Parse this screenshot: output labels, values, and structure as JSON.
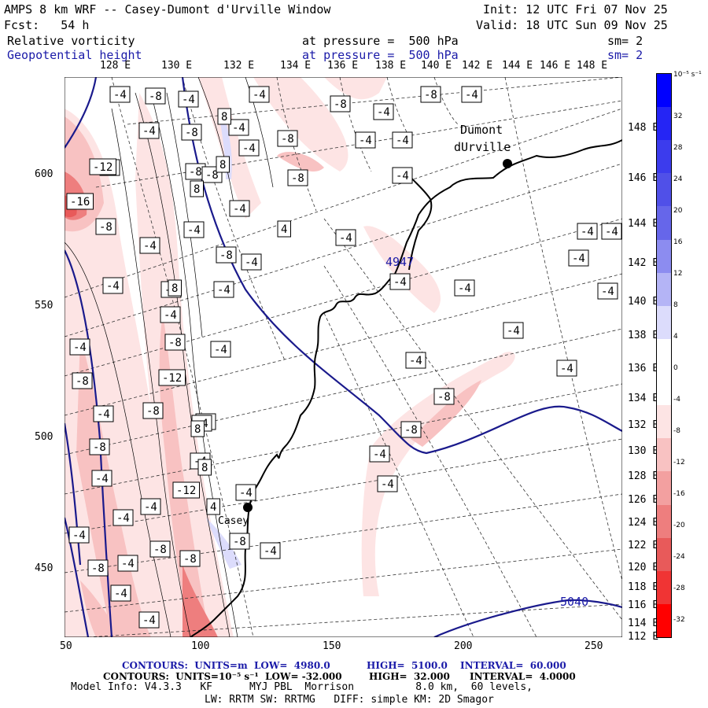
{
  "header": {
    "title": "AMPS 8 km WRF -- Casey-Dumont d'Urville Window",
    "init": "Init: 12 UTC Fri 07 Nov 25",
    "fcst": "Fcst:   54 h",
    "valid": "Valid: 18 UTC Sun 09 Nov 25",
    "field1": "Relative vorticity",
    "field1_level": "at pressure =  500 hPa",
    "field1_sm": "sm= 2",
    "field2": "Geopotential height",
    "field2_level": "at pressure =  500 hPa",
    "field2_sm": "sm= 2"
  },
  "top_lon_labels": [
    "128 E",
    "130 E",
    "132 E",
    "134 E",
    "136 E",
    "138 E",
    "140 E",
    "142 E",
    "144 E",
    "146 E",
    "148 E"
  ],
  "right_lon_labels": [
    "148 E",
    "146 E",
    "144 E",
    "142 E",
    "140 E",
    "138 E",
    "136 E",
    "134 E",
    "132 E",
    "130 E",
    "128 E",
    "126 E",
    "124 E",
    "122 E",
    "120 E",
    "118 E",
    "116 E",
    "114 E",
    "112 E"
  ],
  "y_ticks": [
    "600",
    "550",
    "500",
    "450"
  ],
  "x_ticks": [
    "50",
    "100",
    "150",
    "200",
    "250"
  ],
  "stations": [
    "Dumont\ndUrville",
    "Casey"
  ],
  "height_labels": [
    "4947",
    "5040"
  ],
  "vorticity_labels": [
    "-4",
    "-8",
    "-12",
    "-16",
    "8",
    "4"
  ],
  "colorbar": {
    "unit": "10⁻⁵ s⁻¹",
    "labels": [
      "32",
      "28",
      "24",
      "20",
      "16",
      "12",
      "8",
      "4",
      "0",
      "-4",
      "-8",
      "-12",
      "-16",
      "-20",
      "-24",
      "-28",
      "-32"
    ],
    "colors": [
      "#0000ff",
      "#2525f5",
      "#3c3ced",
      "#5050e8",
      "#6666ea",
      "#8c8cf0",
      "#b4b4f6",
      "#dcdcfc",
      "#ffffff",
      "#ffffff",
      "#fde4e4",
      "#f8c2c2",
      "#f3a0a0",
      "#ee7e7e",
      "#e85a5a",
      "#f03434",
      "#ff0000"
    ]
  },
  "footer": {
    "line1_a": "CONTOURS:  UNITS=m  LOW=  4980.0",
    "line1_b": "HIGH=  5100.0",
    "line1_c": "INTERVAL=  60.000",
    "line2_a": "CONTOURS:  UNITS=10⁻⁵ s⁻¹  LOW= -32.000",
    "line2_b": "HIGH=  32.000",
    "line2_c": "INTERVAL=  4.0000",
    "line3": "Model Info: V4.3.3   KF      MYJ PBL  Morrison          8.0 km,  60 levels,",
    "line4": "LW: RRTM SW: RRTMG   DIFF: simple KM: 2D Smagor"
  },
  "colors": {
    "blue_contour": "#1a1a8c",
    "coast": "#000000",
    "grid": "#333333"
  }
}
